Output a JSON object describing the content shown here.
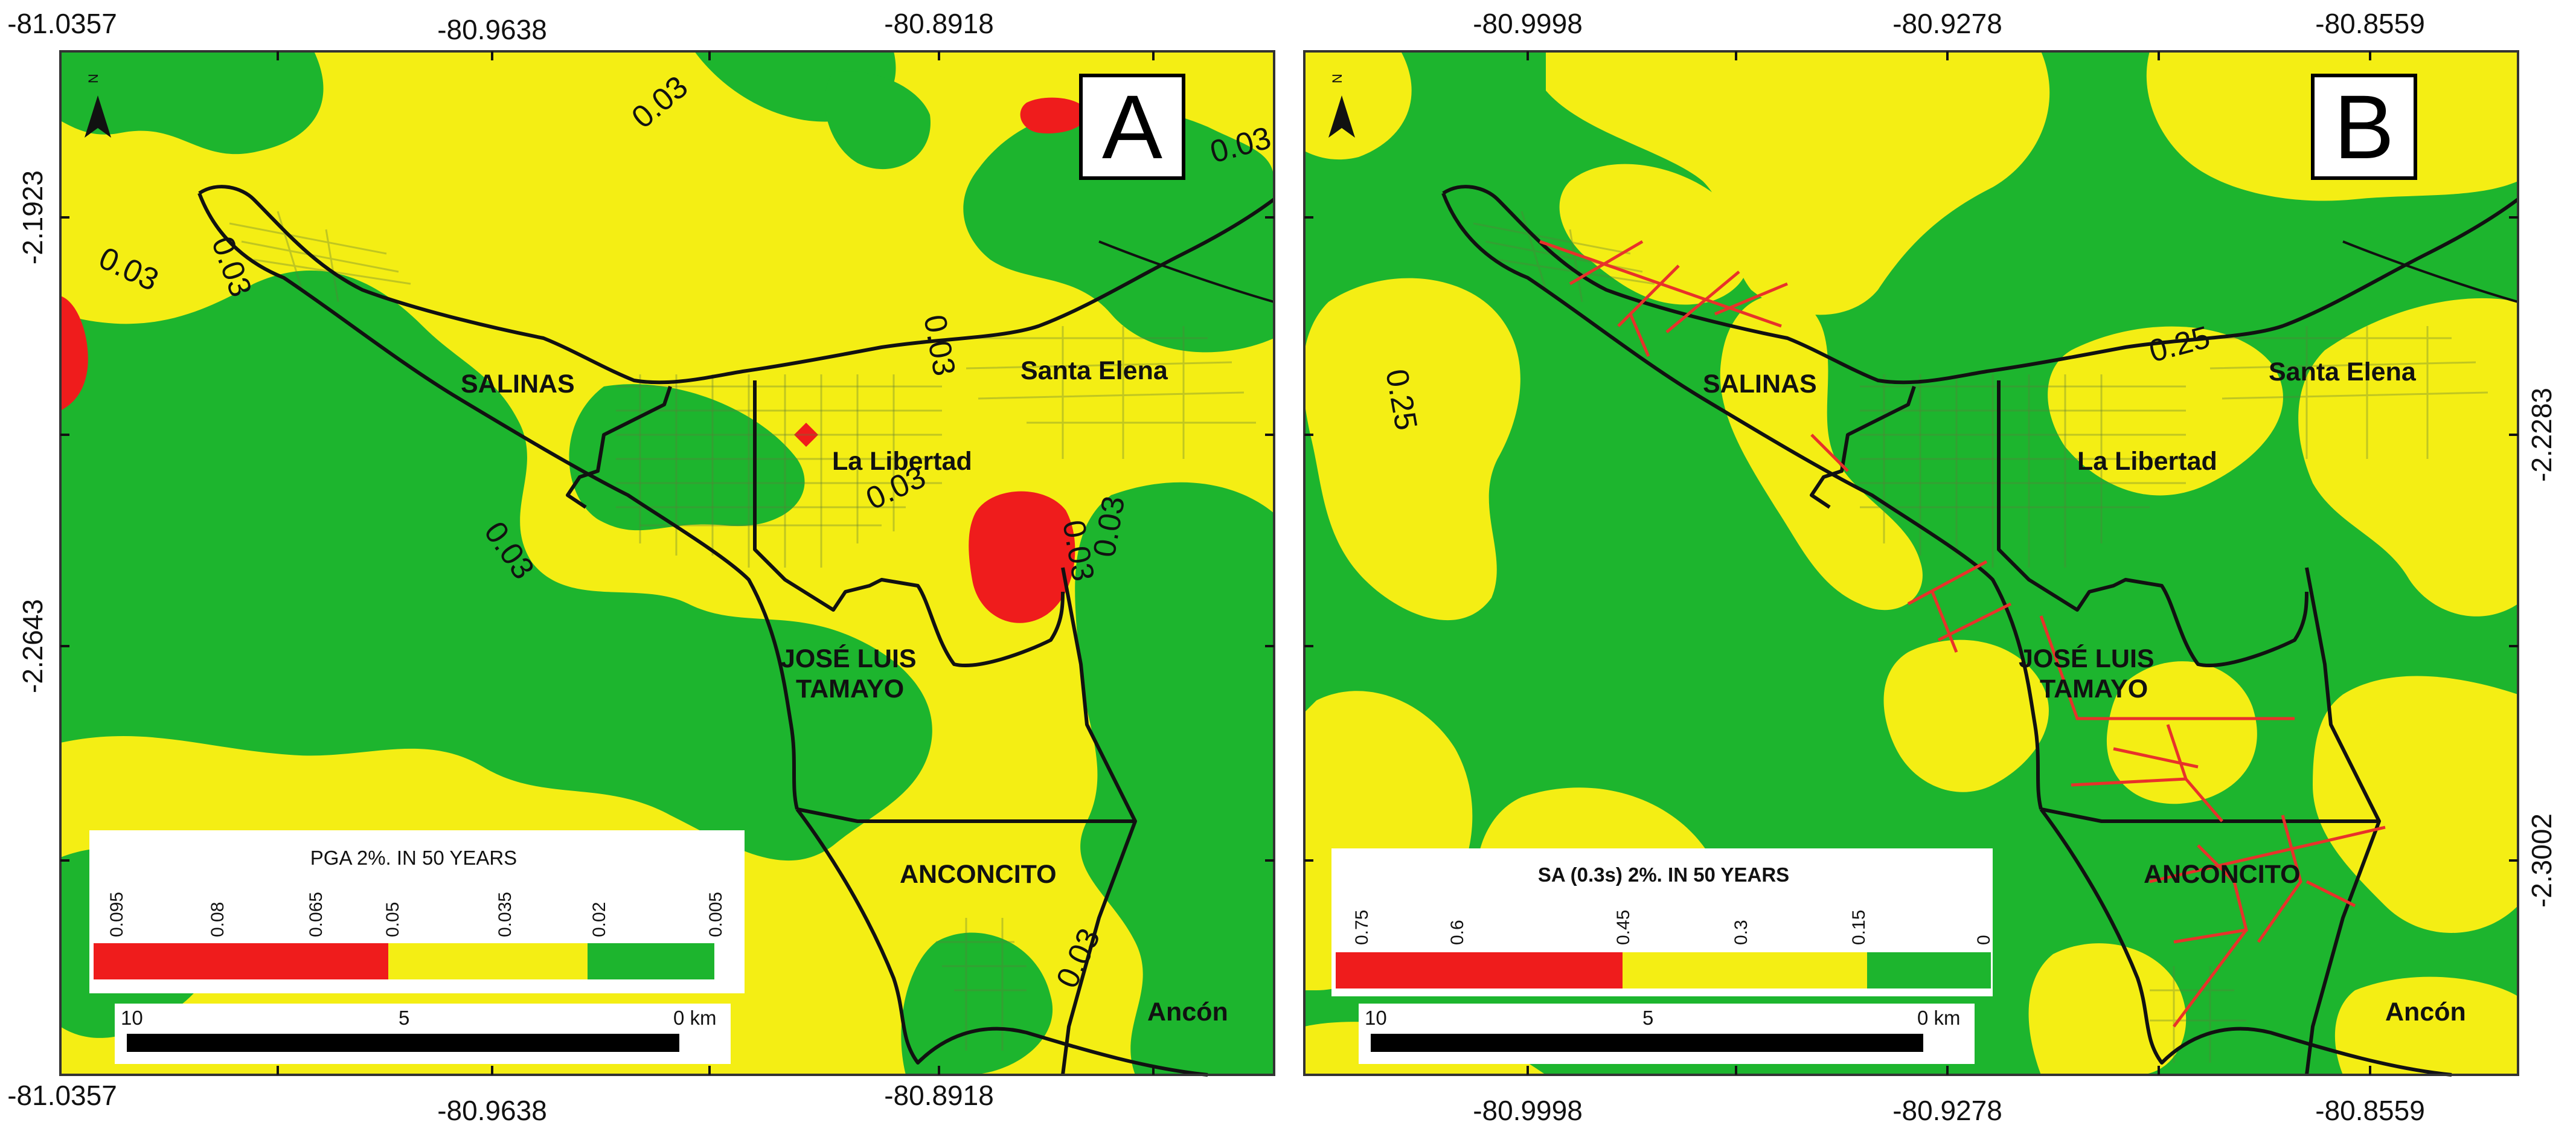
{
  "colors": {
    "green": "#1db52e",
    "yellow": "#f4ee14",
    "red": "#ef1c1c",
    "border": "#111111",
    "roads": "#5f7a3a",
    "faults": "#e8322a"
  },
  "panel_a": {
    "label": "A",
    "top_ticks": [
      "-81.0357",
      "-80.9638",
      "-80.8918"
    ],
    "bottom_ticks": [
      "-81.0357",
      "-80.9638",
      "-80.8918"
    ],
    "left_ticks": [
      "-2.1923",
      "-2.2643"
    ],
    "contours": [
      "0.03",
      "0.03",
      "0.03",
      "0.03",
      "0.03",
      "0.03",
      "0.03",
      "0.03",
      "0.03",
      "0.03"
    ],
    "towns": {
      "salinas": "SALINAS",
      "santa_elena": "Santa Elena",
      "la_libertad": "La Libertad",
      "jose_luis_1": "JOSÉ LUIS",
      "jose_luis_2": "TAMAYO",
      "anconcito": "ANCONCITO",
      "ancon": "Ancón"
    },
    "legend": {
      "title": "PGA 2%. IN 50 YEARS",
      "ticks": [
        "0.095",
        "0.08",
        "0.065",
        "0.05",
        "0.035",
        "0.02",
        "0.005"
      ]
    },
    "scale": {
      "left": "10",
      "mid": "5",
      "right": "0 km"
    }
  },
  "panel_b": {
    "label": "B",
    "top_ticks": [
      "-80.9998",
      "-80.9278",
      "-80.8559"
    ],
    "bottom_ticks": [
      "-80.9998",
      "-80.9278",
      "-80.8559"
    ],
    "right_ticks": [
      "-2.2283",
      "-2.3002"
    ],
    "contours": [
      "0.25",
      "0.25"
    ],
    "towns": {
      "salinas": "SALINAS",
      "santa_elena": "Santa Elena",
      "la_libertad": "La Libertad",
      "jose_luis_1": "JOSÉ LUIS",
      "jose_luis_2": "TAMAYO",
      "anconcito": "ANCONCITO",
      "ancon": "Ancón"
    },
    "legend": {
      "title": "SA (0.3s) 2%. IN 50 YEARS",
      "ticks": [
        "0.75",
        "0.6",
        "0.45",
        "0.3",
        "0.15",
        "0"
      ]
    },
    "scale": {
      "left": "10",
      "mid": "5",
      "right": "0 km"
    }
  }
}
